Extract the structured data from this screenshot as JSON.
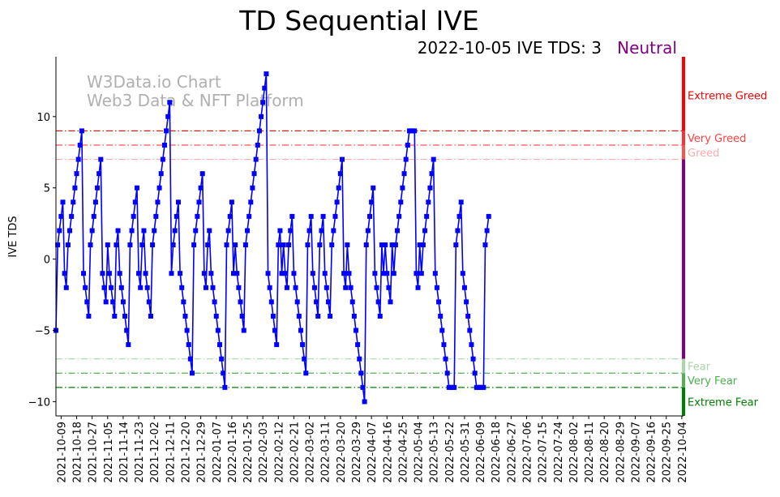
{
  "chart_data": {
    "type": "line",
    "title": "TD Sequential IVE",
    "subtitle": "2022-10-05 IVE TDS: 3",
    "status_label": "Neutral",
    "watermark": [
      "W3Data.io Chart",
      "Web3 Data & NFT Platform"
    ],
    "xlabel": "",
    "ylabel": "IVE TDS",
    "ylim": [
      -11,
      14.2
    ],
    "yticks": [
      -10,
      -5,
      0,
      5,
      10
    ],
    "ytick_labels": [
      "−10",
      "−5",
      "0",
      "5",
      "10"
    ],
    "grid": false,
    "x_tick_labels": [
      "2021-10-09",
      "2021-10-18",
      "2021-10-27",
      "2021-11-05",
      "2021-11-14",
      "2021-11-23",
      "2021-12-02",
      "2021-12-11",
      "2021-12-20",
      "2021-12-29",
      "2022-01-07",
      "2022-01-16",
      "2022-01-25",
      "2022-02-03",
      "2022-02-12",
      "2022-02-21",
      "2022-03-02",
      "2022-03-11",
      "2022-03-20",
      "2022-03-29",
      "2022-04-07",
      "2022-04-16",
      "2022-04-25",
      "2022-05-04",
      "2022-05-13",
      "2022-05-22",
      "2022-05-31",
      "2022-06-09",
      "2022-06-18",
      "2022-06-27",
      "2022-07-06",
      "2022-07-15",
      "2022-07-24",
      "2022-08-02",
      "2022-08-11",
      "2022-08-20",
      "2022-08-29",
      "2022-09-07",
      "2022-09-16",
      "2022-09-25",
      "2022-10-04"
    ],
    "x_start": "2021-10-06",
    "x_step_days": 1,
    "x_range_days": [
      0,
      364
    ],
    "series": [
      {
        "name": "IVE TDS",
        "color": "#0000ff",
        "marker": "square",
        "values": [
          -5,
          1,
          2,
          3,
          4,
          -1,
          -2,
          1,
          2,
          3,
          4,
          5,
          6,
          7,
          8,
          9,
          -1,
          -2,
          -3,
          -4,
          1,
          2,
          3,
          4,
          5,
          6,
          7,
          -1,
          -2,
          -3,
          1,
          -1,
          -2,
          -3,
          -4,
          1,
          2,
          -1,
          -2,
          -3,
          -4,
          -5,
          -6,
          1,
          2,
          3,
          4,
          5,
          -1,
          -2,
          1,
          2,
          -1,
          -2,
          -3,
          -4,
          1,
          2,
          3,
          4,
          5,
          6,
          7,
          8,
          9,
          10,
          11,
          -1,
          1,
          2,
          3,
          4,
          -1,
          -2,
          -3,
          -4,
          -5,
          -6,
          -7,
          -8,
          1,
          2,
          3,
          4,
          5,
          6,
          -1,
          -2,
          1,
          2,
          -1,
          -2,
          -3,
          -4,
          -5,
          -6,
          -7,
          -8,
          -9,
          1,
          2,
          3,
          4,
          -1,
          1,
          -1,
          -2,
          -3,
          -4,
          -5,
          1,
          2,
          3,
          4,
          5,
          6,
          7,
          8,
          9,
          10,
          11,
          12,
          13,
          -1,
          -2,
          -3,
          -4,
          -5,
          -6,
          1,
          2,
          -1,
          1,
          -1,
          -2,
          1,
          2,
          3,
          -1,
          -2,
          -3,
          -4,
          -5,
          -6,
          -7,
          -8,
          1,
          2,
          3,
          -1,
          -2,
          -3,
          -4,
          1,
          2,
          3,
          -1,
          -2,
          -3,
          -4,
          1,
          2,
          3,
          4,
          5,
          6,
          7,
          -1,
          -2,
          1,
          -1,
          -2,
          -3,
          -4,
          -5,
          -6,
          -7,
          -8,
          -9,
          -10,
          1,
          2,
          3,
          4,
          5,
          -1,
          -2,
          -3,
          -4,
          1,
          -1,
          1,
          -1,
          -2,
          -3,
          1,
          -1,
          1,
          2,
          3,
          4,
          5,
          6,
          7,
          8,
          9,
          9,
          9,
          9,
          -1,
          -2,
          1,
          -1,
          1,
          2,
          3,
          4,
          5,
          6,
          7,
          -1,
          -2,
          -3,
          -4,
          -5,
          -6,
          -7,
          -8,
          -9,
          -9,
          -9,
          -9,
          1,
          2,
          3,
          4,
          -1,
          -2,
          -3,
          -4,
          -5,
          -6,
          -7,
          -8,
          -9,
          -9,
          -9,
          -9,
          -9,
          1,
          2,
          3
        ]
      }
    ],
    "thresholds": [
      {
        "value": 9,
        "color": "#ff0000",
        "style": "dashdot"
      },
      {
        "value": 8,
        "color": "#ff5050",
        "style": "dashdot"
      },
      {
        "value": 7,
        "color": "#ffaaaa",
        "style": "dashdot"
      },
      {
        "value": -7,
        "color": "#a8d8a8",
        "style": "dashdot"
      },
      {
        "value": -8,
        "color": "#55b055",
        "style": "dashdot"
      },
      {
        "value": -9,
        "color": "#008000",
        "style": "dashdot"
      }
    ],
    "zone_bar": [
      {
        "from": 9,
        "to": 14.2,
        "color": "#ff0000"
      },
      {
        "from": 8,
        "to": 9,
        "color": "#ff3030"
      },
      {
        "from": 7,
        "to": 8,
        "color": "#ff5050"
      },
      {
        "from": -7,
        "to": 7,
        "color": "#800080"
      },
      {
        "from": -8,
        "to": -7,
        "color": "#a8d8a8"
      },
      {
        "from": -9,
        "to": -8,
        "color": "#55b055"
      },
      {
        "from": -11,
        "to": -9,
        "color": "#008000"
      }
    ],
    "zone_labels": [
      {
        "text": "Extreme Greed",
        "y": 11.5,
        "color": "#ff0000"
      },
      {
        "text": "Very Greed",
        "y": 8.5,
        "color": "#ff4040"
      },
      {
        "text": "Greed",
        "y": 7.5,
        "color": "#ffaaaa"
      },
      {
        "text": "Fear",
        "y": -7.5,
        "color": "#a8d8a8"
      },
      {
        "text": "Very Fear",
        "y": -8.5,
        "color": "#4caf50"
      },
      {
        "text": "Extreme Fear",
        "y": -10.0,
        "color": "#008000"
      }
    ],
    "colors": {
      "line": "#0000ff",
      "neutral": "#800080",
      "watermark": "#b0b0b0",
      "axis": "#000000"
    }
  }
}
